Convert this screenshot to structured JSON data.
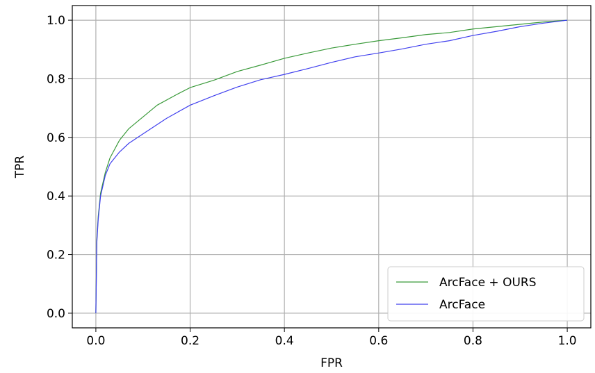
{
  "chart_data": {
    "type": "line",
    "title": "",
    "xlabel": "FPR",
    "ylabel": "TPR",
    "xlim": [
      -0.05,
      1.05
    ],
    "ylim": [
      -0.05,
      1.05
    ],
    "xticks": [
      0.0,
      0.2,
      0.4,
      0.6,
      0.8,
      1.0
    ],
    "yticks": [
      0.0,
      0.2,
      0.4,
      0.6,
      0.8,
      1.0
    ],
    "xtick_labels": [
      "0.0",
      "0.2",
      "0.4",
      "0.6",
      "0.8",
      "1.0"
    ],
    "ytick_labels": [
      "0.0",
      "0.2",
      "0.4",
      "0.6",
      "0.8",
      "1.0"
    ],
    "grid": true,
    "legend_position": "lower-right",
    "series": [
      {
        "name": "ArcFace + OURS",
        "color": "#3a9a3a",
        "x": [
          0.0,
          0.002,
          0.005,
          0.01,
          0.02,
          0.03,
          0.05,
          0.07,
          0.1,
          0.13,
          0.17,
          0.2,
          0.25,
          0.3,
          0.35,
          0.4,
          0.45,
          0.5,
          0.55,
          0.6,
          0.65,
          0.7,
          0.75,
          0.8,
          0.85,
          0.9,
          0.95,
          1.0
        ],
        "y": [
          0.0,
          0.25,
          0.33,
          0.41,
          0.48,
          0.53,
          0.59,
          0.63,
          0.67,
          0.71,
          0.745,
          0.77,
          0.795,
          0.825,
          0.847,
          0.87,
          0.888,
          0.905,
          0.918,
          0.93,
          0.94,
          0.951,
          0.958,
          0.97,
          0.978,
          0.986,
          0.994,
          1.0
        ]
      },
      {
        "name": "ArcFace",
        "color": "#4040ee",
        "x": [
          0.0,
          0.002,
          0.005,
          0.01,
          0.02,
          0.03,
          0.05,
          0.07,
          0.1,
          0.15,
          0.2,
          0.25,
          0.3,
          0.35,
          0.4,
          0.45,
          0.5,
          0.55,
          0.6,
          0.65,
          0.7,
          0.75,
          0.8,
          0.85,
          0.9,
          0.95,
          1.0
        ],
        "y": [
          0.0,
          0.24,
          0.32,
          0.4,
          0.47,
          0.51,
          0.55,
          0.58,
          0.612,
          0.665,
          0.71,
          0.742,
          0.772,
          0.797,
          0.815,
          0.835,
          0.856,
          0.875,
          0.888,
          0.902,
          0.918,
          0.93,
          0.948,
          0.962,
          0.978,
          0.99,
          1.0
        ]
      }
    ]
  }
}
